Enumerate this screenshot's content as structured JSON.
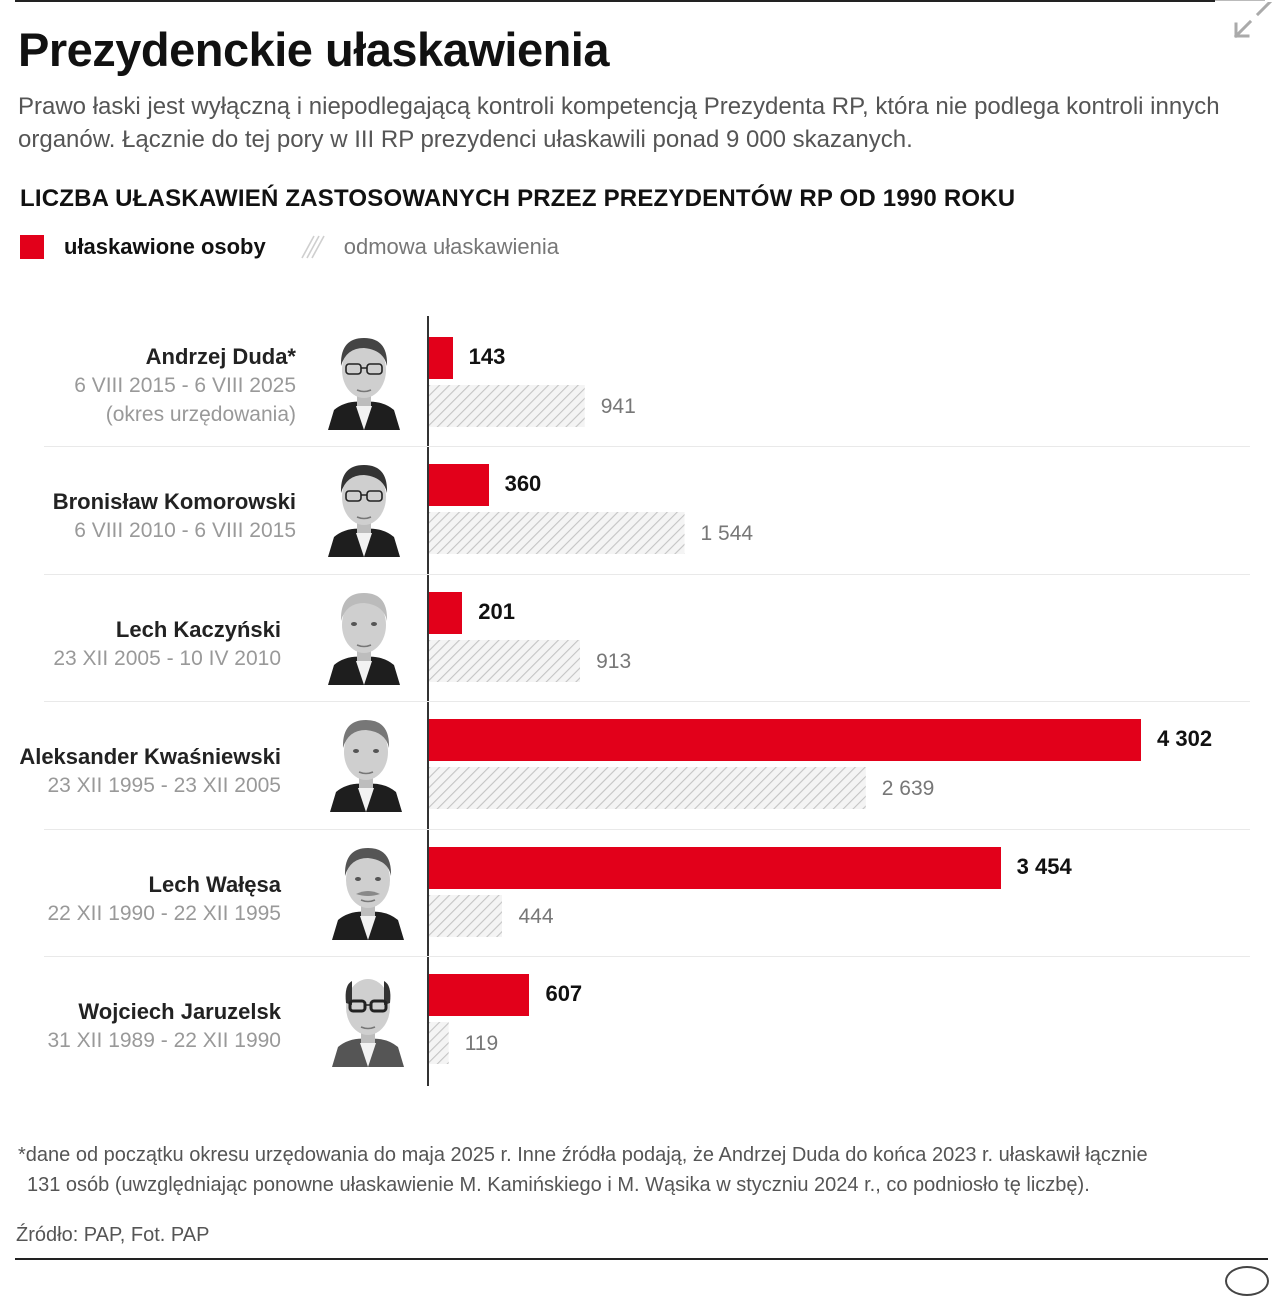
{
  "header": {
    "title": "Prezydenckie ułaskawienia",
    "lead": "Prawo łaski jest wyłączną i niepodlegającą kontroli kompetencją Prezydenta RP, która nie podlega kontroli innych organów. Łącznie do tej pory w III RP prezydenci ułaskawili ponad 9 000 skazanych.",
    "expand_icon": "expand-arrows-icon"
  },
  "colors": {
    "granted": "#e2001a",
    "hatch": "#c8c8c8",
    "axis": "#333333"
  },
  "chart_data": {
    "type": "bar",
    "orientation": "horizontal",
    "title": "LICZBA UŁASKAWIEŃ ZASTOSOWANYCH PRZEZ PREZYDENTÓW RP OD 1990 ROKU",
    "legend": [
      {
        "label": "ułaskawione osoby",
        "style": "solid-red"
      },
      {
        "label": "odmowa ułaskawienia",
        "style": "hatched-gray"
      }
    ],
    "legend_position": "top-left",
    "grid": false,
    "xlim": [
      0,
      4302
    ],
    "categories": [
      {
        "name": "Andrzej Duda*",
        "term": "6 VIII 2015 - 6 VIII 2025",
        "note": "(okres urzędowania)"
      },
      {
        "name": "Bronisław Komorowski",
        "term": "6 VIII 2010 - 6 VIII 2015"
      },
      {
        "name": "Lech Kaczyński",
        "term": "23 XII 2005 - 10 IV 2010"
      },
      {
        "name": "Aleksander Kwaśniewski",
        "term": "23 XII 1995 - 23 XII 2005"
      },
      {
        "name": "Lech Wałęsa",
        "term": "22 XII 1990 - 22 XII 1995"
      },
      {
        "name": "Wojciech Jaruzelsk",
        "term": "31 XII 1989 - 22 XII 1990"
      }
    ],
    "series": [
      {
        "name": "ułaskawione osoby",
        "values": [
          143,
          360,
          201,
          4302,
          3454,
          607
        ],
        "labels": [
          "143",
          "360",
          "201",
          "4 302",
          "3 454",
          "607"
        ]
      },
      {
        "name": "odmowa ułaskawienia",
        "values": [
          941,
          1544,
          913,
          2639,
          444,
          119
        ],
        "labels": [
          "941",
          "1 544",
          "913",
          "2 639",
          "444",
          "119"
        ]
      }
    ]
  },
  "footer": {
    "footnote_line1": "*dane od początku okresu urzędowania do maja 2025 r. Inne źródła podają, że Andrzej Duda do końca 2023 r. ułaskawił łącznie",
    "footnote_line2": "131 osób (uwzględniając ponowne ułaskawienie M. Kamińskiego i M. Wąsika w styczniu 2024 r., co podniosło tę liczbę).",
    "source": "Źródło: PAP, Fot. PAP"
  }
}
